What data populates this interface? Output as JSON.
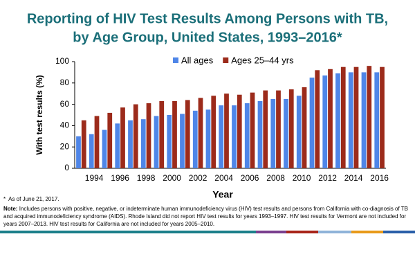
{
  "chart_data": {
    "type": "bar",
    "title": [
      "Reporting of HIV Test Results Among Persons with TB,",
      "by Age Group, United States, 1993–2016*"
    ],
    "ylabel": "With test results (%)",
    "xlabel": "Year",
    "categories": [
      null,
      "1994",
      null,
      "1996",
      null,
      "1998",
      null,
      "2000",
      null,
      "2002",
      null,
      "2004",
      null,
      "2006",
      null,
      "2008",
      null,
      "2010",
      null,
      "2012",
      null,
      "2014",
      null,
      "2016"
    ],
    "series": [
      {
        "name": "All ages",
        "color": "#4f86e8",
        "values": [
          30,
          32,
          36,
          42,
          45,
          46,
          49,
          50,
          51,
          54,
          55,
          59,
          59,
          61,
          63,
          65,
          65,
          68,
          85,
          87,
          89,
          90,
          90,
          90
        ]
      },
      {
        "name": "Ages 25–44 yrs",
        "color": "#9c2b1b",
        "values": [
          45,
          49,
          52,
          57,
          60,
          61,
          63,
          63,
          64,
          66,
          68,
          70,
          69,
          71,
          73,
          73,
          74,
          76,
          92,
          93,
          95,
          95,
          96,
          95
        ]
      }
    ],
    "ylim": [
      0,
      100
    ],
    "yticks": [
      0,
      20,
      40,
      60,
      80,
      100
    ],
    "legend": "top",
    "footnote": "*  As of June 21, 2017.",
    "note": {
      "label": "Note:",
      "text": "Includes persons with positive, negative, or indeterminate human immunodeficiency virus (HIV) test results and persons from California with co-diagnosis of TB and acquired immunodeficiency syndrome (AIDS).  Rhode Island did not report HIV test results for years 1993–1997.  HIV test results for Vermont are not included for years 2007–2013.  HIV test results for California are not included for years 2005–2010."
    }
  }
}
